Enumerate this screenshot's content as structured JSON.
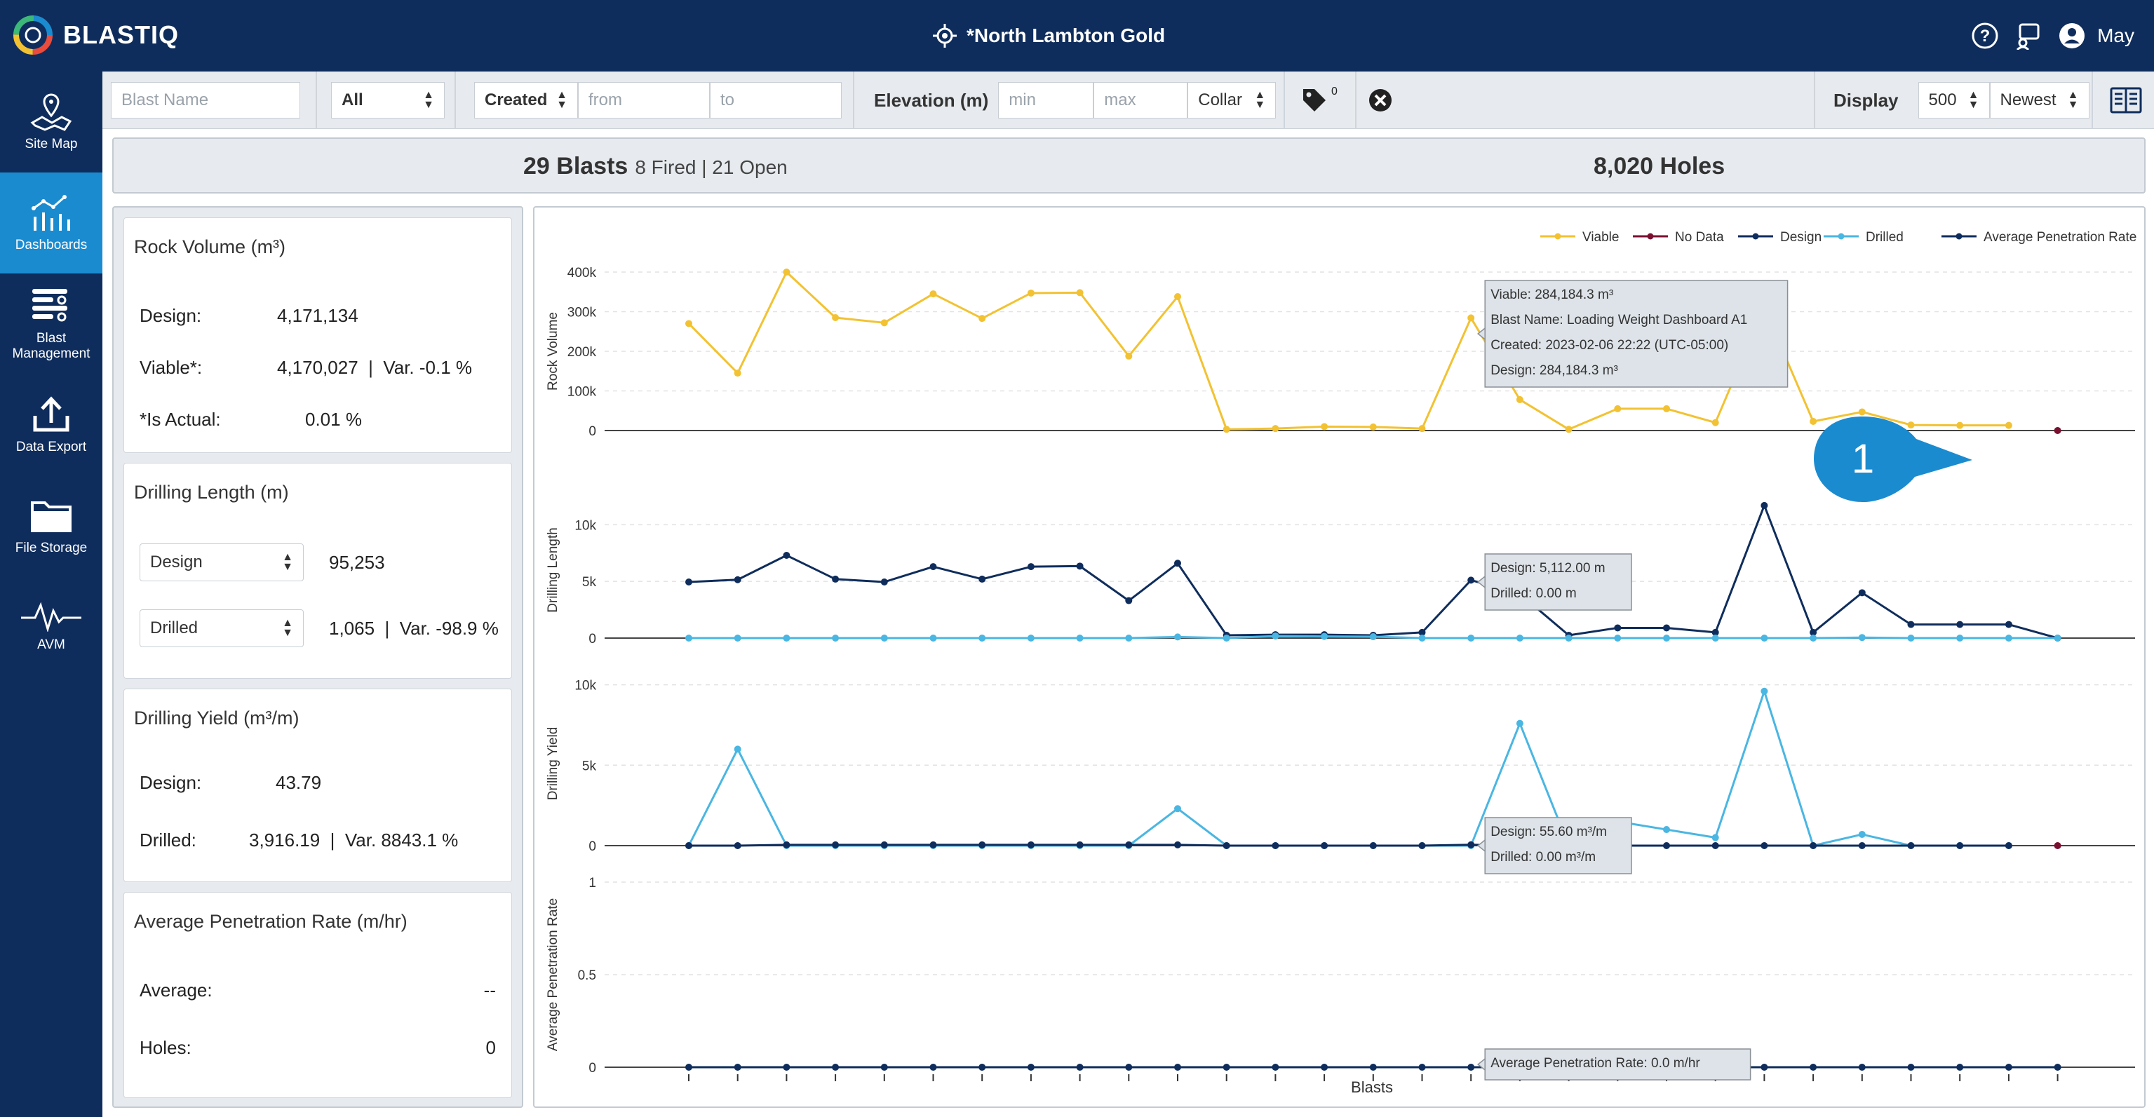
{
  "app": {
    "logo_text": "BLASTIQ",
    "site_title": "*North Lambton Gold",
    "user_name": "May"
  },
  "colors": {
    "nav_bg": "#0f2d5c",
    "nav_active": "#1b8bd0",
    "viable": "#f2c232",
    "no_data": "#7a1030",
    "design": "#0f2d5c",
    "drilled": "#4ab6e2",
    "apr": "#0f2d5c",
    "callout": "#1b8bd0"
  },
  "icons": [
    "target-icon",
    "help-icon",
    "chat-icon",
    "user-icon",
    "site-map-icon",
    "dashboards-icon",
    "blast-management-icon",
    "data-export-icon",
    "file-storage-icon",
    "avm-icon",
    "tag-icon",
    "clear-filter-icon",
    "report-icon"
  ],
  "sidebar": {
    "items": [
      {
        "label": "Site Map",
        "active": false
      },
      {
        "label": "Dashboards",
        "active": true
      },
      {
        "label": "Blast Management",
        "active": false
      },
      {
        "label": "Data Export",
        "active": false
      },
      {
        "label": "File Storage",
        "active": false
      },
      {
        "label": "AVM",
        "active": false
      }
    ]
  },
  "filters": {
    "blast_name_placeholder": "Blast Name",
    "status_value": "All",
    "date_type": "Created",
    "from_placeholder": "from",
    "to_placeholder": "to",
    "elevation_label": "Elevation (m)",
    "min_placeholder": "min",
    "max_placeholder": "max",
    "elevation_ref": "Collar",
    "tag_count": "0",
    "display_label": "Display",
    "display_count": "500",
    "sort_value": "Newest"
  },
  "summary": {
    "blasts": "29 Blasts",
    "blasts_sub": "8 Fired | 21 Open",
    "holes": "8,020 Holes"
  },
  "cards": {
    "rock_volume": {
      "title": "Rock Volume (m³)",
      "design_label": "Design:",
      "design_value": "4,171,134",
      "viable_label": "Viable*:",
      "viable_value": "4,170,027  |  Var. -0.1 %",
      "actual_label": "*Is Actual:",
      "actual_value": "0.01 %"
    },
    "drilling_length": {
      "title": "Drilling Length (m)",
      "select1": "Design",
      "value1": "95,253",
      "select2": "Drilled",
      "value2": "1,065  |  Var. -98.9 %"
    },
    "drilling_yield": {
      "title": "Drilling Yield (m³/m)",
      "design_label": "Design:",
      "design_value": "43.79",
      "drilled_label": "Drilled:",
      "drilled_value": "3,916.19  |  Var. 8843.1 %"
    },
    "apr": {
      "title": "Average Penetration Rate (m/hr)",
      "average_label": "Average:",
      "average_value": "--",
      "holes_label": "Holes:",
      "holes_value": "0"
    }
  },
  "callout": {
    "number": "1"
  },
  "chart_data": {
    "type": "line",
    "xlabel": "Blasts",
    "blast_count": 29,
    "legend": [
      "Viable",
      "No Data",
      "Design",
      "Drilled",
      "Average Penetration Rate"
    ],
    "panels": [
      {
        "ylabel": "Rock Volume",
        "yticks": [
          "0",
          "100k",
          "200k",
          "300k",
          "400k"
        ],
        "ylim": [
          0,
          400000
        ],
        "series": [
          {
            "name": "Viable",
            "values": [
              270000,
              145000,
              400000,
              285000,
              272000,
              345000,
              283000,
              347000,
              348000,
              188000,
              338000,
              3000,
              5000,
              10000,
              9000,
              5000,
              284184,
              78000,
              3000,
              55000,
              55000,
              20000,
              310000,
              23000,
              47000,
              14000,
              13000,
              13000,
              null
            ]
          },
          {
            "name": "No Data",
            "values": [
              null,
              null,
              null,
              null,
              null,
              null,
              null,
              null,
              null,
              null,
              null,
              null,
              null,
              null,
              null,
              null,
              null,
              null,
              null,
              null,
              null,
              null,
              null,
              null,
              null,
              null,
              null,
              null,
              0
            ]
          }
        ]
      },
      {
        "ylabel": "Drilling Length",
        "yticks": [
          "0",
          "5k",
          "10k"
        ],
        "ylim": [
          0,
          12000
        ],
        "series": [
          {
            "name": "Design",
            "values": [
              4950,
              5150,
              7300,
              5200,
              4950,
              6300,
              5200,
              6300,
              6350,
              3300,
              6600,
              250,
              300,
              300,
              250,
              500,
              5112,
              3900,
              250,
              900,
              900,
              500,
              11700,
              500,
              4000,
              1200,
              1200,
              1200,
              0
            ]
          },
          {
            "name": "Drilled",
            "values": [
              0,
              0,
              0,
              0,
              0,
              0,
              0,
              0,
              0,
              0,
              100,
              0,
              180,
              150,
              120,
              0,
              0,
              0,
              0,
              0,
              0,
              0,
              0,
              0,
              50,
              0,
              0,
              0,
              0
            ]
          }
        ]
      },
      {
        "ylabel": "Drilling Yield",
        "yticks": [
          "0",
          "5k",
          "10k"
        ],
        "ylim": [
          0,
          10200
        ],
        "series": [
          {
            "name": "Drilled",
            "values": [
              0,
              6000,
              0,
              0,
              0,
              0,
              0,
              0,
              0,
              0,
              2300,
              0,
              0,
              0,
              0,
              0,
              0,
              7600,
              0,
              1500,
              1000,
              500,
              9600,
              0,
              700,
              0,
              0,
              0,
              null
            ]
          },
          {
            "name": "Design",
            "values": [
              0,
              0,
              50,
              50,
              50,
              50,
              50,
              50,
              50,
              50,
              50,
              0,
              0,
              0,
              0,
              0,
              55.6,
              0,
              0,
              0,
              0,
              0,
              0,
              0,
              0,
              0,
              0,
              0,
              null
            ]
          },
          {
            "name": "No Data",
            "values": [
              null,
              null,
              null,
              null,
              null,
              null,
              null,
              null,
              null,
              null,
              null,
              null,
              null,
              null,
              null,
              null,
              null,
              null,
              null,
              null,
              null,
              null,
              null,
              null,
              null,
              null,
              null,
              null,
              0
            ]
          }
        ]
      },
      {
        "ylabel": "Average Penetration Rate",
        "yticks": [
          "0",
          "0.5",
          "1"
        ],
        "ylim": [
          0,
          1
        ],
        "series": [
          {
            "name": "Average Penetration Rate",
            "values": [
              0,
              0,
              0,
              0,
              0,
              0,
              0,
              0,
              0,
              0,
              0,
              0,
              0,
              0,
              0,
              0,
              0,
              0,
              0,
              0,
              0,
              0,
              0,
              0,
              0,
              0,
              0,
              0,
              0
            ]
          }
        ]
      }
    ],
    "tooltips": {
      "blast_index": 16,
      "rock_volume": [
        "Viable: 284,184.3 m³",
        "Blast Name: Loading Weight Dashboard A1",
        "Created: 2023-02-06 22:22 (UTC-05:00)",
        "Design: 284,184.3 m³"
      ],
      "drilling_length": [
        "Design: 5,112.00 m",
        "Drilled: 0.00 m"
      ],
      "drilling_yield": [
        "Design: 55.60 m³/m",
        "Drilled: 0.00 m³/m"
      ],
      "apr": [
        "Average Penetration Rate: 0.0 m/hr"
      ]
    }
  }
}
